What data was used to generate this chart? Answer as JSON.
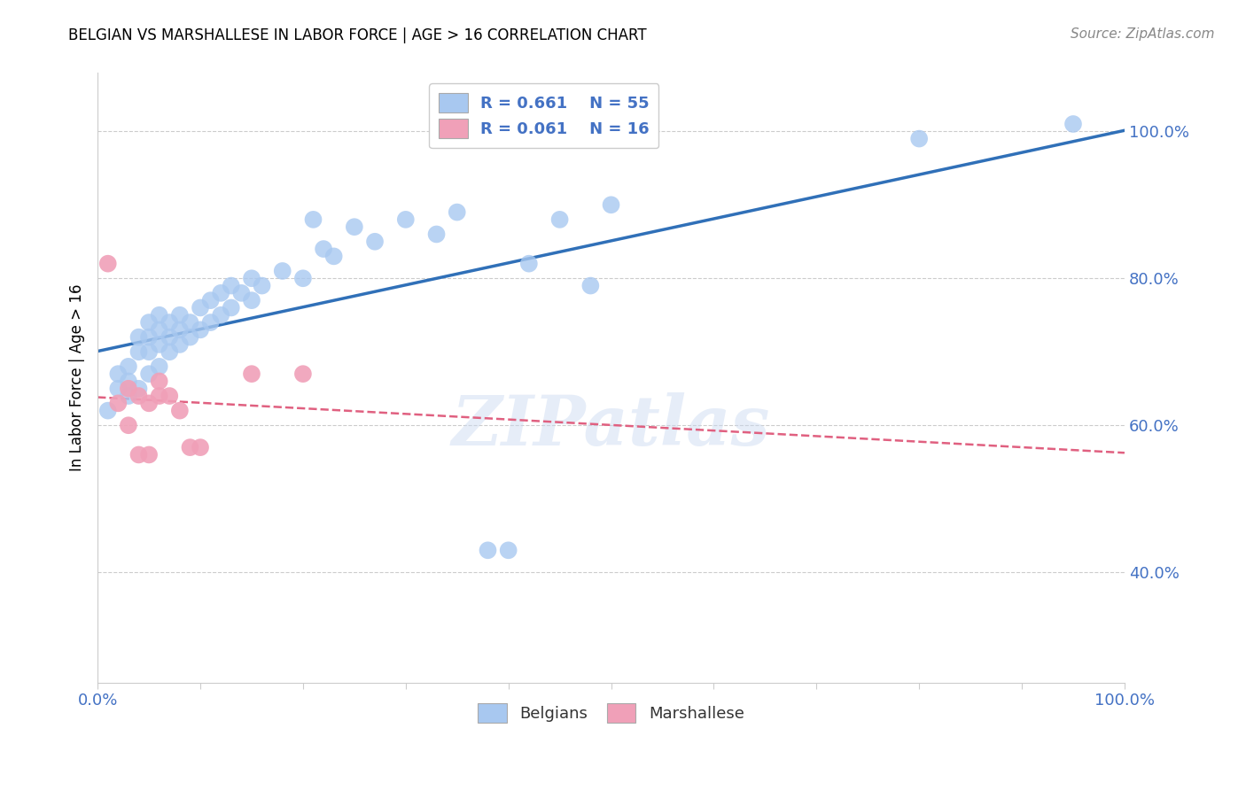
{
  "title": "BELGIAN VS MARSHALLESE IN LABOR FORCE | AGE > 16 CORRELATION CHART",
  "source": "Source: ZipAtlas.com",
  "ylabel": "In Labor Force | Age > 16",
  "xlim": [
    0.0,
    1.0
  ],
  "ylim": [
    0.25,
    1.08
  ],
  "y_ticks": [
    0.4,
    0.6,
    0.8,
    1.0
  ],
  "y_tick_labels": [
    "40.0%",
    "60.0%",
    "80.0%",
    "100.0%"
  ],
  "legend_blue_r": "R = 0.661",
  "legend_blue_n": "N = 55",
  "legend_pink_r": "R = 0.061",
  "legend_pink_n": "N = 16",
  "legend_label_blue": "Belgians",
  "legend_label_pink": "Marshallese",
  "blue_color": "#A8C8F0",
  "pink_color": "#F0A0B8",
  "blue_line_color": "#3070B8",
  "pink_line_color": "#E06080",
  "watermark_text": "ZIPatlas",
  "blue_x": [
    0.01,
    0.02,
    0.02,
    0.03,
    0.03,
    0.03,
    0.04,
    0.04,
    0.04,
    0.05,
    0.05,
    0.05,
    0.05,
    0.06,
    0.06,
    0.06,
    0.06,
    0.07,
    0.07,
    0.07,
    0.08,
    0.08,
    0.08,
    0.09,
    0.09,
    0.1,
    0.1,
    0.11,
    0.11,
    0.12,
    0.12,
    0.13,
    0.13,
    0.14,
    0.15,
    0.15,
    0.16,
    0.18,
    0.2,
    0.21,
    0.22,
    0.23,
    0.25,
    0.27,
    0.3,
    0.33,
    0.35,
    0.38,
    0.4,
    0.42,
    0.45,
    0.48,
    0.5,
    0.8,
    0.95
  ],
  "blue_y": [
    0.62,
    0.65,
    0.67,
    0.64,
    0.66,
    0.68,
    0.65,
    0.7,
    0.72,
    0.67,
    0.7,
    0.72,
    0.74,
    0.68,
    0.71,
    0.73,
    0.75,
    0.7,
    0.72,
    0.74,
    0.71,
    0.73,
    0.75,
    0.72,
    0.74,
    0.73,
    0.76,
    0.74,
    0.77,
    0.75,
    0.78,
    0.76,
    0.79,
    0.78,
    0.77,
    0.8,
    0.79,
    0.81,
    0.8,
    0.88,
    0.84,
    0.83,
    0.87,
    0.85,
    0.88,
    0.86,
    0.89,
    0.43,
    0.43,
    0.82,
    0.88,
    0.79,
    0.9,
    0.99,
    1.01
  ],
  "pink_x": [
    0.01,
    0.02,
    0.03,
    0.03,
    0.04,
    0.04,
    0.05,
    0.05,
    0.06,
    0.06,
    0.07,
    0.08,
    0.09,
    0.1,
    0.15,
    0.2
  ],
  "pink_y": [
    0.82,
    0.63,
    0.65,
    0.6,
    0.64,
    0.56,
    0.63,
    0.56,
    0.64,
    0.66,
    0.64,
    0.62,
    0.57,
    0.57,
    0.67,
    0.67
  ]
}
